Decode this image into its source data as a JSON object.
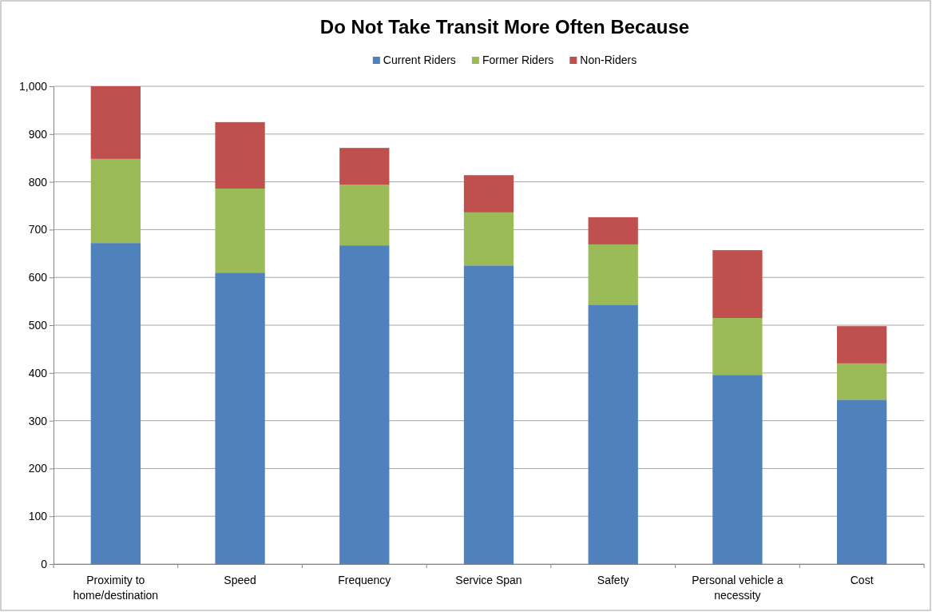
{
  "chart_data": {
    "type": "bar",
    "title": "Do Not Take Transit More Often Because",
    "stacked": true,
    "legend": "top",
    "grid": "y",
    "categories": [
      "Proximity to home/destination",
      "Speed",
      "Frequency",
      "Service Span",
      "Safety",
      "Personal vehicle a necessity",
      "Cost"
    ],
    "series": [
      {
        "name": "Current Riders",
        "color": "#4f81bd",
        "values": [
          672,
          610,
          667,
          625,
          543,
          396,
          344
        ]
      },
      {
        "name": "Former Riders",
        "color": "#9bbb59",
        "values": [
          176,
          176,
          127,
          111,
          126,
          119,
          76
        ]
      },
      {
        "name": "Non-Riders",
        "color": "#c0504d",
        "values": [
          152,
          139,
          77,
          78,
          57,
          142,
          78
        ]
      }
    ],
    "ylim": [
      0,
      1000
    ],
    "yticks": [
      0,
      100,
      200,
      300,
      400,
      500,
      600,
      700,
      800,
      900,
      {
        "value": 1000,
        "label": "1,000"
      }
    ]
  }
}
